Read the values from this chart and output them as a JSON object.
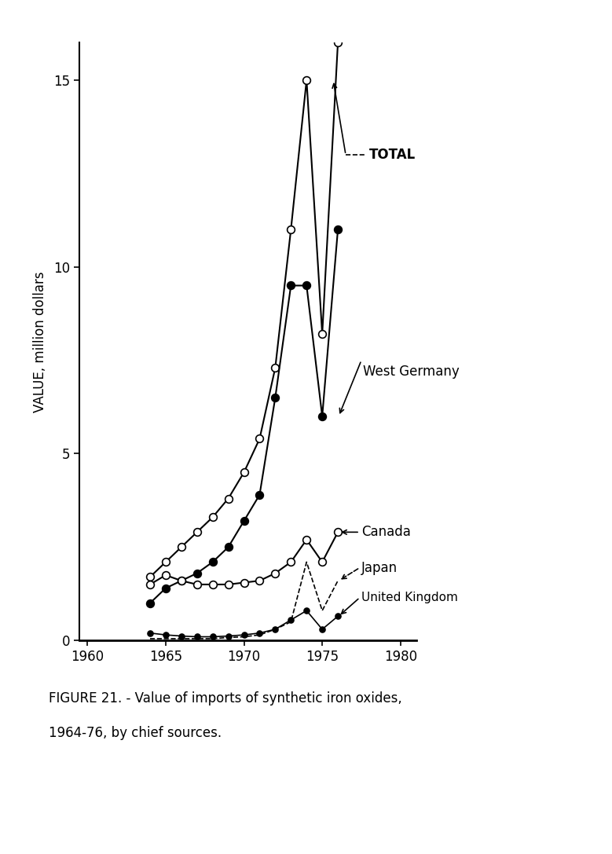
{
  "title_line1": "FIGURE 21. - Value of imports of synthetic iron oxides,",
  "title_line2": "1964-76, by chief sources.",
  "ylabel": "VALUE, million dollars",
  "xlabel_ticks": [
    1960,
    1965,
    1970,
    1975,
    1980
  ],
  "ylim": [
    0,
    16.0
  ],
  "xlim": [
    1959.5,
    1981
  ],
  "yticks": [
    0,
    5,
    10,
    15
  ],
  "series": {
    "TOTAL": {
      "x": [
        1964,
        1965,
        1966,
        1967,
        1968,
        1969,
        1970,
        1971,
        1972,
        1973,
        1974,
        1975,
        1976
      ],
      "y": [
        1.7,
        2.1,
        2.5,
        2.9,
        3.3,
        3.8,
        4.5,
        5.4,
        7.3,
        11.0,
        15.0,
        8.2,
        16.0
      ],
      "marker": "o",
      "fillstyle": "none",
      "linestyle": "-",
      "color": "black",
      "linewidth": 1.5,
      "markersize": 7
    },
    "West Germany": {
      "x": [
        1964,
        1965,
        1966,
        1967,
        1968,
        1969,
        1970,
        1971,
        1972,
        1973,
        1974,
        1975,
        1976
      ],
      "y": [
        1.0,
        1.4,
        1.6,
        1.8,
        2.1,
        2.5,
        3.2,
        3.9,
        6.5,
        9.5,
        9.5,
        6.0,
        11.0
      ],
      "marker": "o",
      "fillstyle": "full",
      "linestyle": "-",
      "color": "black",
      "linewidth": 1.5,
      "markersize": 7
    },
    "Canada": {
      "x": [
        1964,
        1965,
        1966,
        1967,
        1968,
        1969,
        1970,
        1971,
        1972,
        1973,
        1974,
        1975,
        1976
      ],
      "y": [
        1.5,
        1.75,
        1.6,
        1.5,
        1.5,
        1.5,
        1.55,
        1.6,
        1.8,
        2.1,
        2.7,
        2.1,
        2.9
      ],
      "marker": "o",
      "fillstyle": "none",
      "linestyle": "-",
      "color": "black",
      "linewidth": 1.5,
      "markersize": 7
    },
    "Japan": {
      "x": [
        1964,
        1965,
        1966,
        1967,
        1968,
        1969,
        1970,
        1971,
        1972,
        1973,
        1974,
        1975,
        1976
      ],
      "y": [
        0.05,
        0.05,
        0.05,
        0.05,
        0.05,
        0.08,
        0.1,
        0.15,
        0.3,
        0.5,
        2.1,
        0.8,
        1.6
      ],
      "marker": null,
      "fillstyle": "none",
      "linestyle": "--",
      "color": "black",
      "linewidth": 1.2,
      "markersize": 0
    },
    "United Kingdom": {
      "x": [
        1964,
        1965,
        1966,
        1967,
        1968,
        1969,
        1970,
        1971,
        1972,
        1973,
        1974,
        1975,
        1976
      ],
      "y": [
        0.2,
        0.15,
        0.12,
        0.1,
        0.1,
        0.12,
        0.15,
        0.2,
        0.3,
        0.55,
        0.8,
        0.3,
        0.65
      ],
      "marker": "o",
      "fillstyle": "full",
      "linestyle": "-",
      "color": "black",
      "linewidth": 1.2,
      "markersize": 5
    }
  },
  "background_color": "#ffffff"
}
